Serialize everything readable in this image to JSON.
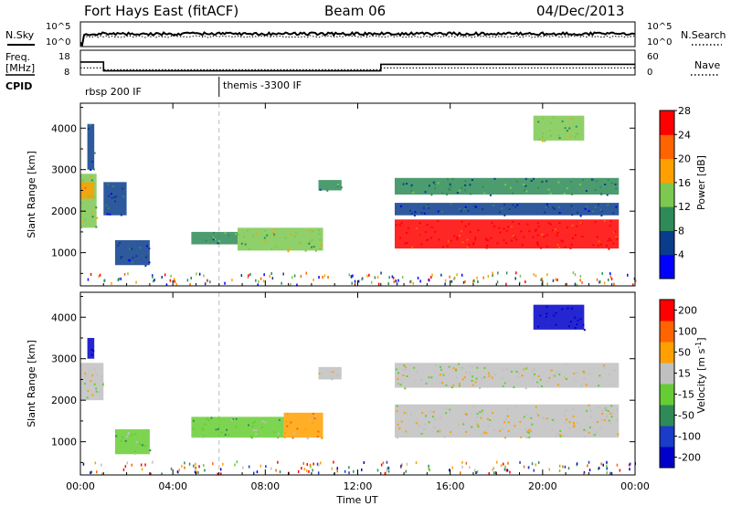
{
  "header": {
    "station": "Fort Hays East (fitACF)",
    "beam": "Beam 06",
    "date": "04/Dec/2013"
  },
  "noise_panel": {
    "left_label": "N.Sky",
    "right_label": "N.Search",
    "left_ticks": [
      "10^5",
      "10^0"
    ],
    "right_ticks": [
      "10^5",
      "10^0"
    ]
  },
  "freq_panel": {
    "left_label_1": "Freq.",
    "left_label_2": "[MHz]",
    "right_label": "Nave",
    "left_ticks": [
      "18",
      "8"
    ],
    "right_ticks": [
      "60",
      "0"
    ],
    "freq_steps": [
      {
        "t": 0.0,
        "v": 16.3
      },
      {
        "t": 1.0,
        "v": 16.3
      },
      {
        "t": 1.0,
        "v": 10.6
      },
      {
        "t": 13.0,
        "v": 10.6
      },
      {
        "t": 13.0,
        "v": 14.8
      },
      {
        "t": 24.0,
        "v": 14.8
      }
    ],
    "nave_steps": [
      {
        "t": 0.0,
        "v": 27
      },
      {
        "t": 1.0,
        "v": 27
      },
      {
        "t": 1.0,
        "v": 20
      },
      {
        "t": 13.0,
        "v": 20
      },
      {
        "t": 13.0,
        "v": 27
      },
      {
        "t": 24.0,
        "v": 27
      }
    ]
  },
  "cpid": {
    "label": "CPID",
    "modes": [
      {
        "name": "rbsp 200 IF",
        "start": 0.0
      },
      {
        "name": "themis -3300 IF",
        "start": 6.0
      }
    ]
  },
  "chart_data": [
    {
      "type": "heatmap",
      "panel": "power",
      "ylabel": "Slant Range [km]",
      "ylim": [
        200,
        4600
      ],
      "yticks": [
        1000,
        2000,
        3000,
        4000
      ],
      "xlim": [
        0,
        24
      ],
      "colorbar": {
        "label": "Power [dB]",
        "range": [
          0,
          32
        ],
        "ticks": [
          "4",
          "8",
          "12",
          "16",
          "20",
          "24",
          "28"
        ],
        "colors": [
          "#0000ff",
          "#0a3c8c",
          "#2e8b57",
          "#7cc850",
          "#ffa000",
          "#ff6400",
          "#ff0000"
        ]
      },
      "regions": [
        {
          "t0": 0.0,
          "t1": 0.7,
          "r0": 1600,
          "r1": 2900,
          "level": 3
        },
        {
          "t0": 0.0,
          "t1": 0.6,
          "r0": 2300,
          "r1": 2700,
          "level": 4
        },
        {
          "t0": 0.3,
          "t1": 0.6,
          "r0": 3000,
          "r1": 4100,
          "level": 1
        },
        {
          "t0": 1.0,
          "t1": 2.0,
          "r0": 1900,
          "r1": 2700,
          "level": 1
        },
        {
          "t0": 1.5,
          "t1": 3.0,
          "r0": 700,
          "r1": 1300,
          "level": 1
        },
        {
          "t0": 4.8,
          "t1": 6.8,
          "r0": 1200,
          "r1": 1500,
          "level": 2
        },
        {
          "t0": 6.8,
          "t1": 10.5,
          "r0": 1050,
          "r1": 1600,
          "level": 3
        },
        {
          "t0": 10.3,
          "t1": 11.3,
          "r0": 2500,
          "r1": 2750,
          "level": 2
        },
        {
          "t0": 13.6,
          "t1": 23.3,
          "r0": 1100,
          "r1": 1800,
          "level": 6
        },
        {
          "t0": 13.6,
          "t1": 23.3,
          "r0": 2400,
          "r1": 2800,
          "level": 2
        },
        {
          "t0": 13.6,
          "t1": 23.3,
          "r0": 1900,
          "r1": 2200,
          "level": 1
        },
        {
          "t0": 19.6,
          "t1": 21.8,
          "r0": 3700,
          "r1": 4300,
          "level": 3
        }
      ]
    },
    {
      "type": "heatmap",
      "panel": "velocity",
      "ylabel": "Slant Range [km]",
      "ylim": [
        200,
        4600
      ],
      "yticks": [
        1000,
        2000,
        3000,
        4000
      ],
      "xlim": [
        0,
        24
      ],
      "xticks": [
        "00:00",
        "04:00",
        "08:00",
        "12:00",
        "16:00",
        "20:00",
        "00:00"
      ],
      "xlabel": "Time UT",
      "colorbar": {
        "label": "Velocity [m s^-1]",
        "ticks": [
          "200",
          "100",
          "50",
          "15",
          "-15",
          "-50",
          "-100",
          "-200"
        ],
        "colors": [
          "#0000c8",
          "#1a3cc8",
          "#2e8b57",
          "#66cc33",
          "#c0c0c0",
          "#ffa000",
          "#ff6400",
          "#ff0000"
        ]
      },
      "regions": [
        {
          "t0": 0.0,
          "t1": 1.0,
          "r0": 2000,
          "r1": 2900,
          "level": 4
        },
        {
          "t0": 0.3,
          "t1": 0.6,
          "r0": 3000,
          "r1": 3500,
          "level": 0
        },
        {
          "t0": 1.5,
          "t1": 3.0,
          "r0": 700,
          "r1": 1300,
          "level": 3
        },
        {
          "t0": 4.8,
          "t1": 8.8,
          "r0": 1100,
          "r1": 1600,
          "level": 3
        },
        {
          "t0": 8.8,
          "t1": 10.5,
          "r0": 1100,
          "r1": 1700,
          "level": 5
        },
        {
          "t0": 10.3,
          "t1": 11.3,
          "r0": 2500,
          "r1": 2800,
          "level": 4
        },
        {
          "t0": 13.6,
          "t1": 23.3,
          "r0": 1100,
          "r1": 1900,
          "level": 4
        },
        {
          "t0": 13.6,
          "t1": 23.3,
          "r0": 2300,
          "r1": 2900,
          "level": 4
        },
        {
          "t0": 19.6,
          "t1": 21.8,
          "r0": 3700,
          "r1": 4300,
          "level": 0
        }
      ]
    }
  ]
}
